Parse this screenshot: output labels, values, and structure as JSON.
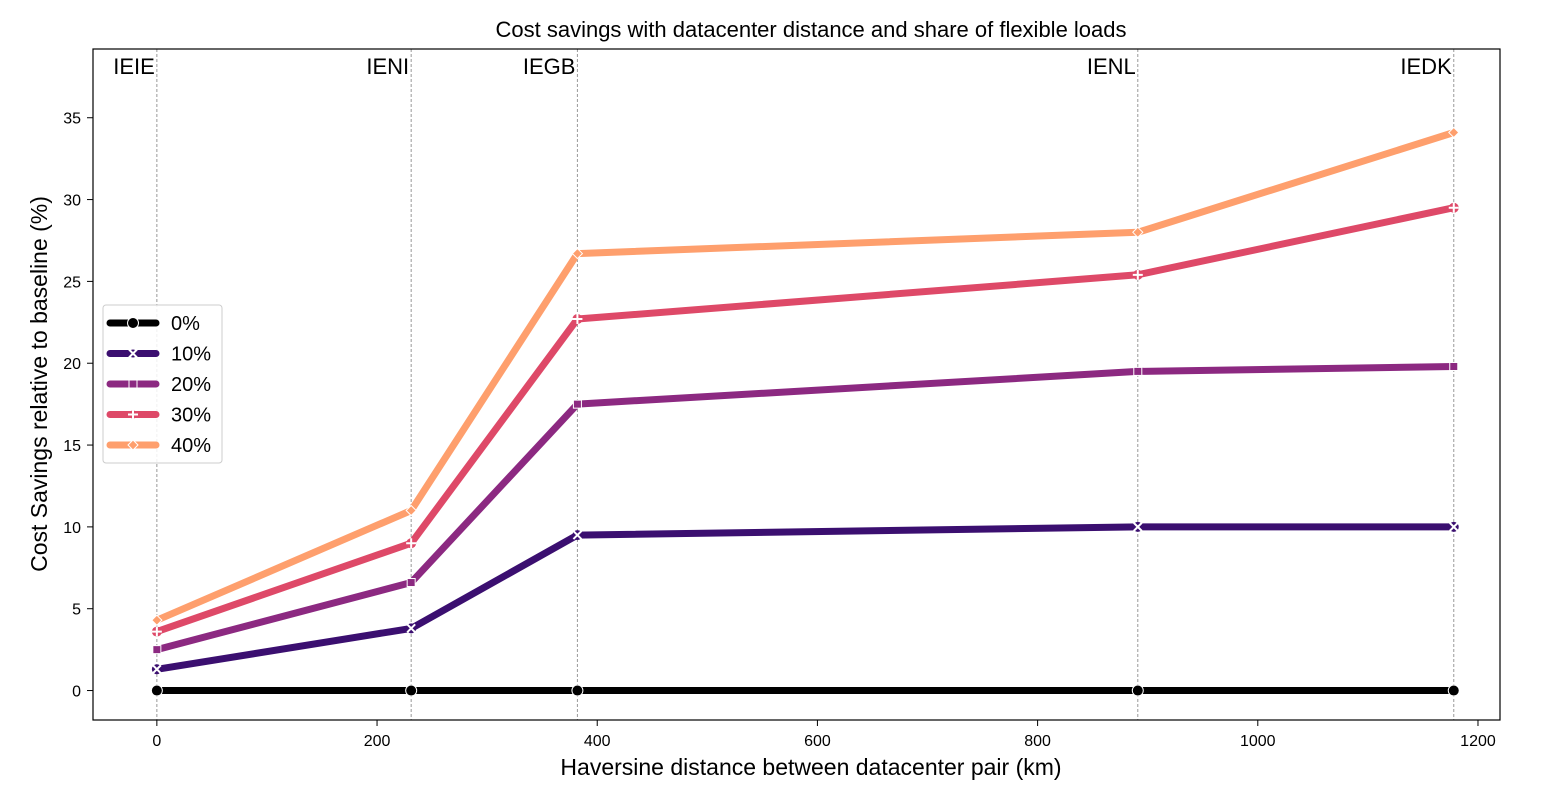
{
  "chart_data": {
    "type": "line",
    "title": "Cost savings with datacenter distance and share of flexible loads",
    "xlabel": "Haversine distance between datacenter pair (km)",
    "ylabel": "Cost Savings relative to baseline (%)",
    "xlim": [
      -58,
      1220
    ],
    "ylim": [
      -1.8,
      39.2
    ],
    "xticks": [
      0,
      200,
      400,
      600,
      800,
      1000,
      1200
    ],
    "yticks": [
      0,
      5,
      10,
      15,
      20,
      25,
      30,
      35
    ],
    "grid": false,
    "legend_position": "center-left",
    "x": [
      0,
      231,
      382,
      891,
      1178
    ],
    "vlines": [
      {
        "x": 0,
        "label": "IEIE"
      },
      {
        "x": 231,
        "label": "IENI"
      },
      {
        "x": 382,
        "label": "IEGB"
      },
      {
        "x": 891,
        "label": "IENL"
      },
      {
        "x": 1178,
        "label": "IEDK"
      }
    ],
    "series": [
      {
        "name": "0%",
        "color": "#000000",
        "marker": "circle",
        "values": [
          0,
          0,
          0,
          0,
          0
        ]
      },
      {
        "name": "10%",
        "color": "#3b0f70",
        "marker": "x",
        "values": [
          1.3,
          3.8,
          9.5,
          10.0,
          10.0
        ]
      },
      {
        "name": "20%",
        "color": "#8c2981",
        "marker": "square",
        "values": [
          2.5,
          6.6,
          17.5,
          19.5,
          19.8
        ]
      },
      {
        "name": "30%",
        "color": "#de4968",
        "marker": "plus",
        "values": [
          3.6,
          9.0,
          22.7,
          25.4,
          29.5
        ]
      },
      {
        "name": "40%",
        "color": "#fe9f6d",
        "marker": "diamond",
        "values": [
          4.3,
          11.0,
          26.7,
          28.0,
          34.1
        ]
      }
    ]
  }
}
